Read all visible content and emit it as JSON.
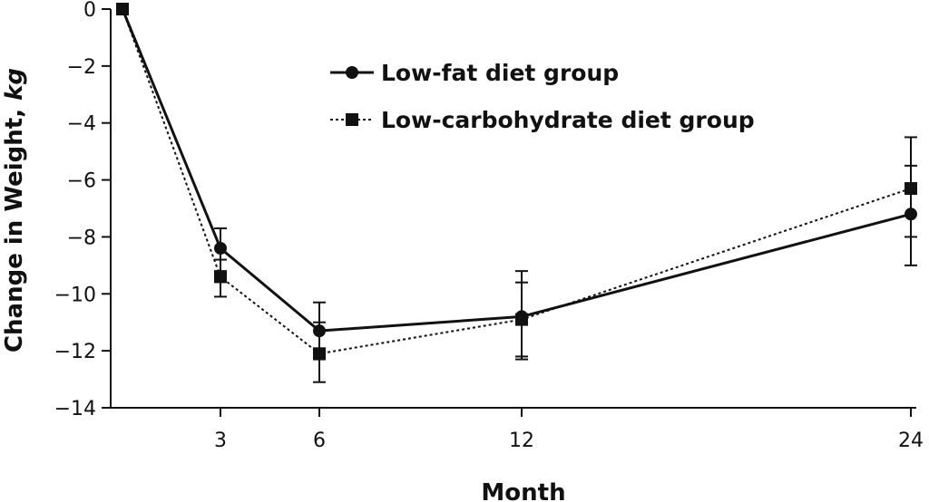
{
  "chart_data": {
    "type": "line",
    "xlabel": "Month",
    "ylabel": "Change in Weight, ",
    "ylabel_unit": "kg",
    "x": [
      0,
      3,
      6,
      12,
      24
    ],
    "xticks": [
      3,
      6,
      12,
      24
    ],
    "yticks": [
      0,
      -2,
      -4,
      -6,
      -8,
      -10,
      -12,
      -14
    ],
    "ylim": [
      -14,
      0
    ],
    "legend_position": "top-center",
    "series": [
      {
        "name": "Low-fat diet group",
        "marker": "circle",
        "line_style": "solid",
        "values": [
          0,
          -8.4,
          -11.3,
          -10.8,
          -7.2
        ],
        "error_low": [
          null,
          -9.2,
          -12.3,
          -12.2,
          -9.0
        ],
        "error_high": [
          null,
          -7.7,
          -10.3,
          -9.2,
          -5.5
        ]
      },
      {
        "name": "Low-carbohydrate diet group",
        "marker": "square",
        "line_style": "dotted",
        "values": [
          0,
          -9.4,
          -12.1,
          -10.9,
          -6.3
        ],
        "error_low": [
          null,
          -10.1,
          -13.1,
          -12.3,
          -8.0
        ],
        "error_high": [
          null,
          -8.8,
          -11.0,
          -9.6,
          -4.5
        ]
      }
    ]
  }
}
